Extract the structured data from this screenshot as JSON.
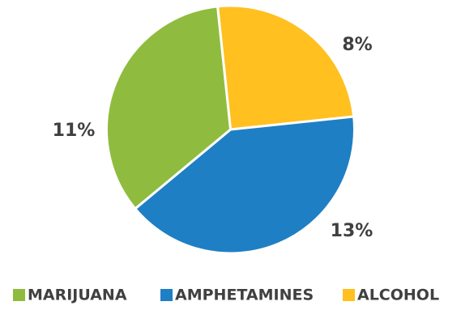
{
  "chart_data": {
    "type": "pie",
    "slices": [
      {
        "name": "ALCOHOL",
        "value": 8,
        "label": "8%",
        "color": "#ffc020"
      },
      {
        "name": "AMPHETAMINES",
        "value": 13,
        "label": "13%",
        "color": "#1f7fc4"
      },
      {
        "name": "MARIJUANA",
        "value": 11,
        "label": "11%",
        "color": "#8fbc3f"
      }
    ],
    "legend_order": [
      "MARIJUANA",
      "AMPHETAMINES",
      "ALCOHOL"
    ],
    "legend_placement": "bottom"
  }
}
